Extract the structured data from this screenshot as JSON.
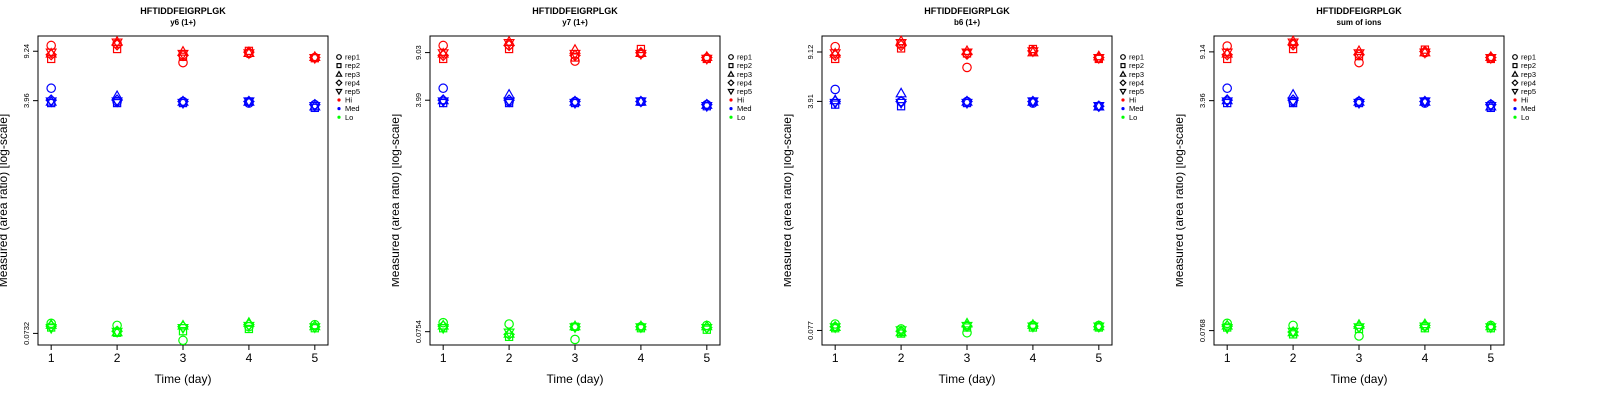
{
  "legend": {
    "shapes": [
      {
        "label": "rep1",
        "shape": "circle"
      },
      {
        "label": "rep2",
        "shape": "square"
      },
      {
        "label": "rep3",
        "shape": "triangle-up"
      },
      {
        "label": "rep4",
        "shape": "diamond"
      },
      {
        "label": "rep5",
        "shape": "triangle-down"
      }
    ],
    "colors": [
      {
        "label": "Hi",
        "color": "#ff0000"
      },
      {
        "label": "Med",
        "color": "#0000ff"
      },
      {
        "label": "Lo",
        "color": "#00ff00"
      }
    ]
  },
  "chart_data": [
    {
      "type": "scatter",
      "title": "HFTIDDFEIGRPLGK",
      "subtitle": "y6 (1+)",
      "xlabel": "Time (day)",
      "ylabel": "Measured (area ratio) [log-scale]",
      "log_y": true,
      "x_ticks": [
        1,
        2,
        3,
        4,
        5
      ],
      "y_ticks": [
        "0.0732",
        "3.96",
        "9.24"
      ],
      "y_tick_values": [
        0.0732,
        3.96,
        9.24
      ],
      "ylim": [
        0.06,
        12
      ],
      "series": [
        {
          "group": "Hi",
          "replicate": "rep1",
          "values": [
            10.2,
            10.5,
            7.6,
            8.9,
            8.3
          ]
        },
        {
          "group": "Hi",
          "replicate": "rep2",
          "values": [
            8.1,
            9.6,
            8.4,
            9.3,
            8.2
          ]
        },
        {
          "group": "Hi",
          "replicate": "rep3",
          "values": [
            8.9,
            10.9,
            9.2,
            9.0,
            8.4
          ]
        },
        {
          "group": "Hi",
          "replicate": "rep4",
          "values": [
            8.7,
            10.3,
            8.6,
            9.1,
            8.3
          ]
        },
        {
          "group": "Hi",
          "replicate": "rep5",
          "values": [
            9.0,
            10.7,
            8.8,
            8.9,
            8.2
          ]
        },
        {
          "group": "Med",
          "replicate": "rep1",
          "values": [
            4.9,
            3.9,
            3.9,
            3.8,
            3.7
          ]
        },
        {
          "group": "Med",
          "replicate": "rep2",
          "values": [
            3.8,
            3.8,
            3.8,
            3.9,
            3.5
          ]
        },
        {
          "group": "Med",
          "replicate": "rep3",
          "values": [
            3.9,
            4.3,
            3.9,
            3.9,
            3.6
          ]
        },
        {
          "group": "Med",
          "replicate": "rep4",
          "values": [
            4.0,
            4.0,
            3.9,
            3.9,
            3.7
          ]
        },
        {
          "group": "Med",
          "replicate": "rep5",
          "values": [
            3.9,
            3.9,
            3.8,
            3.9,
            3.6
          ]
        },
        {
          "group": "Lo",
          "replicate": "rep1",
          "values": [
            0.087,
            0.084,
            0.065,
            0.082,
            0.085
          ]
        },
        {
          "group": "Lo",
          "replicate": "rep2",
          "values": [
            0.081,
            0.074,
            0.076,
            0.079,
            0.08
          ]
        },
        {
          "group": "Lo",
          "replicate": "rep3",
          "values": [
            0.085,
            0.075,
            0.084,
            0.088,
            0.083
          ]
        },
        {
          "group": "Lo",
          "replicate": "rep4",
          "values": [
            0.083,
            0.076,
            0.082,
            0.085,
            0.082
          ]
        },
        {
          "group": "Lo",
          "replicate": "rep5",
          "values": [
            0.08,
            0.075,
            0.08,
            0.083,
            0.081
          ]
        }
      ]
    },
    {
      "type": "scatter",
      "title": "HFTIDDFEIGRPLGK",
      "subtitle": "y7 (1+)",
      "xlabel": "Time (day)",
      "ylabel": "Measured (area ratio) [log-scale]",
      "log_y": true,
      "x_ticks": [
        1,
        2,
        3,
        4,
        5
      ],
      "y_ticks": [
        "0.0754",
        "3.99",
        "9.03"
      ],
      "y_tick_values": [
        0.0754,
        3.99,
        9.03
      ],
      "ylim": [
        0.06,
        12
      ],
      "series": [
        {
          "group": "Hi",
          "replicate": "rep1",
          "values": [
            10.2,
            10.3,
            7.8,
            8.9,
            8.2
          ]
        },
        {
          "group": "Hi",
          "replicate": "rep2",
          "values": [
            8.1,
            9.6,
            8.3,
            9.6,
            8.1
          ]
        },
        {
          "group": "Hi",
          "replicate": "rep3",
          "values": [
            8.9,
            10.9,
            9.5,
            9.0,
            8.4
          ]
        },
        {
          "group": "Hi",
          "replicate": "rep4",
          "values": [
            8.6,
            10.2,
            8.6,
            9.0,
            8.3
          ]
        },
        {
          "group": "Hi",
          "replicate": "rep5",
          "values": [
            8.9,
            10.6,
            8.8,
            8.8,
            8.1
          ]
        },
        {
          "group": "Med",
          "replicate": "rep1",
          "values": [
            4.9,
            3.9,
            3.9,
            3.9,
            3.7
          ]
        },
        {
          "group": "Med",
          "replicate": "rep2",
          "values": [
            3.8,
            3.8,
            3.8,
            3.9,
            3.6
          ]
        },
        {
          "group": "Med",
          "replicate": "rep3",
          "values": [
            4.0,
            4.4,
            3.9,
            3.9,
            3.7
          ]
        },
        {
          "group": "Med",
          "replicate": "rep4",
          "values": [
            4.0,
            4.0,
            3.9,
            3.9,
            3.7
          ]
        },
        {
          "group": "Med",
          "replicate": "rep5",
          "values": [
            3.9,
            3.9,
            3.8,
            3.9,
            3.6
          ]
        },
        {
          "group": "Lo",
          "replicate": "rep1",
          "values": [
            0.088,
            0.086,
            0.066,
            0.082,
            0.084
          ]
        },
        {
          "group": "Lo",
          "replicate": "rep2",
          "values": [
            0.08,
            0.069,
            0.082,
            0.08,
            0.078
          ]
        },
        {
          "group": "Lo",
          "replicate": "rep3",
          "values": [
            0.084,
            0.073,
            0.083,
            0.083,
            0.083
          ]
        },
        {
          "group": "Lo",
          "replicate": "rep4",
          "values": [
            0.083,
            0.072,
            0.082,
            0.082,
            0.081
          ]
        },
        {
          "group": "Lo",
          "replicate": "rep5",
          "values": [
            0.08,
            0.074,
            0.081,
            0.081,
            0.08
          ]
        }
      ]
    },
    {
      "type": "scatter",
      "title": "HFTIDDFEIGRPLGK",
      "subtitle": "b6 (1+)",
      "xlabel": "Time (day)",
      "ylabel": "Measured (area ratio) [log-scale]",
      "log_y": true,
      "x_ticks": [
        1,
        2,
        3,
        4,
        5
      ],
      "y_ticks": [
        "0.077",
        "3.91",
        "9.12"
      ],
      "y_tick_values": [
        0.077,
        3.91,
        9.12
      ],
      "ylim": [
        0.06,
        12
      ],
      "series": [
        {
          "group": "Hi",
          "replicate": "rep1",
          "values": [
            10.0,
            10.5,
            7.0,
            9.2,
            8.2
          ]
        },
        {
          "group": "Hi",
          "replicate": "rep2",
          "values": [
            8.1,
            9.7,
            8.9,
            9.6,
            8.1
          ]
        },
        {
          "group": "Hi",
          "replicate": "rep3",
          "values": [
            8.9,
            11.0,
            9.3,
            9.1,
            8.5
          ]
        },
        {
          "group": "Hi",
          "replicate": "rep4",
          "values": [
            8.6,
            10.2,
            8.8,
            9.3,
            8.3
          ]
        },
        {
          "group": "Hi",
          "replicate": "rep5",
          "values": [
            8.9,
            10.6,
            9.0,
            9.2,
            8.2
          ]
        },
        {
          "group": "Med",
          "replicate": "rep1",
          "values": [
            4.8,
            3.9,
            3.9,
            3.8,
            3.6
          ]
        },
        {
          "group": "Med",
          "replicate": "rep2",
          "values": [
            3.7,
            3.6,
            3.8,
            3.9,
            3.6
          ]
        },
        {
          "group": "Med",
          "replicate": "rep3",
          "values": [
            4.0,
            4.5,
            3.9,
            3.9,
            3.6
          ]
        },
        {
          "group": "Med",
          "replicate": "rep4",
          "values": [
            3.9,
            3.9,
            3.9,
            3.9,
            3.6
          ]
        },
        {
          "group": "Med",
          "replicate": "rep5",
          "values": [
            3.8,
            3.8,
            3.8,
            3.9,
            3.6
          ]
        },
        {
          "group": "Lo",
          "replicate": "rep1",
          "values": [
            0.086,
            0.079,
            0.074,
            0.084,
            0.084
          ]
        },
        {
          "group": "Lo",
          "replicate": "rep2",
          "values": [
            0.08,
            0.073,
            0.081,
            0.081,
            0.081
          ]
        },
        {
          "group": "Lo",
          "replicate": "rep3",
          "values": [
            0.082,
            0.075,
            0.087,
            0.085,
            0.083
          ]
        },
        {
          "group": "Lo",
          "replicate": "rep4",
          "values": [
            0.082,
            0.076,
            0.083,
            0.083,
            0.082
          ]
        },
        {
          "group": "Lo",
          "replicate": "rep5",
          "values": [
            0.081,
            0.077,
            0.083,
            0.082,
            0.082
          ]
        }
      ]
    },
    {
      "type": "scatter",
      "title": "HFTIDDFEIGRPLGK",
      "subtitle": "sum of ions",
      "xlabel": "Time (day)",
      "ylabel": "Measured (area ratio) [log-scale]",
      "log_y": true,
      "x_ticks": [
        1,
        2,
        3,
        4,
        5
      ],
      "y_ticks": [
        "0.0768",
        "3.96",
        "9.14"
      ],
      "y_tick_values": [
        0.0768,
        3.96,
        9.14
      ],
      "ylim": [
        0.06,
        12
      ],
      "series": [
        {
          "group": "Hi",
          "replicate": "rep1",
          "values": [
            10.1,
            10.5,
            7.6,
            9.0,
            8.2
          ]
        },
        {
          "group": "Hi",
          "replicate": "rep2",
          "values": [
            8.1,
            9.6,
            8.5,
            9.5,
            8.1
          ]
        },
        {
          "group": "Hi",
          "replicate": "rep3",
          "values": [
            8.9,
            11.0,
            9.3,
            9.1,
            8.4
          ]
        },
        {
          "group": "Hi",
          "replicate": "rep4",
          "values": [
            8.7,
            10.3,
            8.7,
            9.2,
            8.3
          ]
        },
        {
          "group": "Hi",
          "replicate": "rep5",
          "values": [
            9.0,
            10.7,
            8.9,
            9.0,
            8.2
          ]
        },
        {
          "group": "Med",
          "replicate": "rep1",
          "values": [
            4.9,
            3.9,
            3.9,
            3.8,
            3.7
          ]
        },
        {
          "group": "Med",
          "replicate": "rep2",
          "values": [
            3.8,
            3.8,
            3.8,
            3.9,
            3.5
          ]
        },
        {
          "group": "Med",
          "replicate": "rep3",
          "values": [
            4.0,
            4.4,
            3.9,
            3.9,
            3.6
          ]
        },
        {
          "group": "Med",
          "replicate": "rep4",
          "values": [
            4.0,
            4.0,
            3.9,
            3.9,
            3.7
          ]
        },
        {
          "group": "Med",
          "replicate": "rep5",
          "values": [
            3.9,
            3.9,
            3.8,
            3.9,
            3.6
          ]
        },
        {
          "group": "Lo",
          "replicate": "rep1",
          "values": [
            0.087,
            0.084,
            0.07,
            0.083,
            0.084
          ]
        },
        {
          "group": "Lo",
          "replicate": "rep2",
          "values": [
            0.081,
            0.072,
            0.079,
            0.08,
            0.08
          ]
        },
        {
          "group": "Lo",
          "replicate": "rep3",
          "values": [
            0.084,
            0.075,
            0.085,
            0.086,
            0.083
          ]
        },
        {
          "group": "Lo",
          "replicate": "rep4",
          "values": [
            0.083,
            0.075,
            0.082,
            0.084,
            0.082
          ]
        },
        {
          "group": "Lo",
          "replicate": "rep5",
          "values": [
            0.08,
            0.075,
            0.081,
            0.082,
            0.081
          ]
        }
      ]
    }
  ]
}
